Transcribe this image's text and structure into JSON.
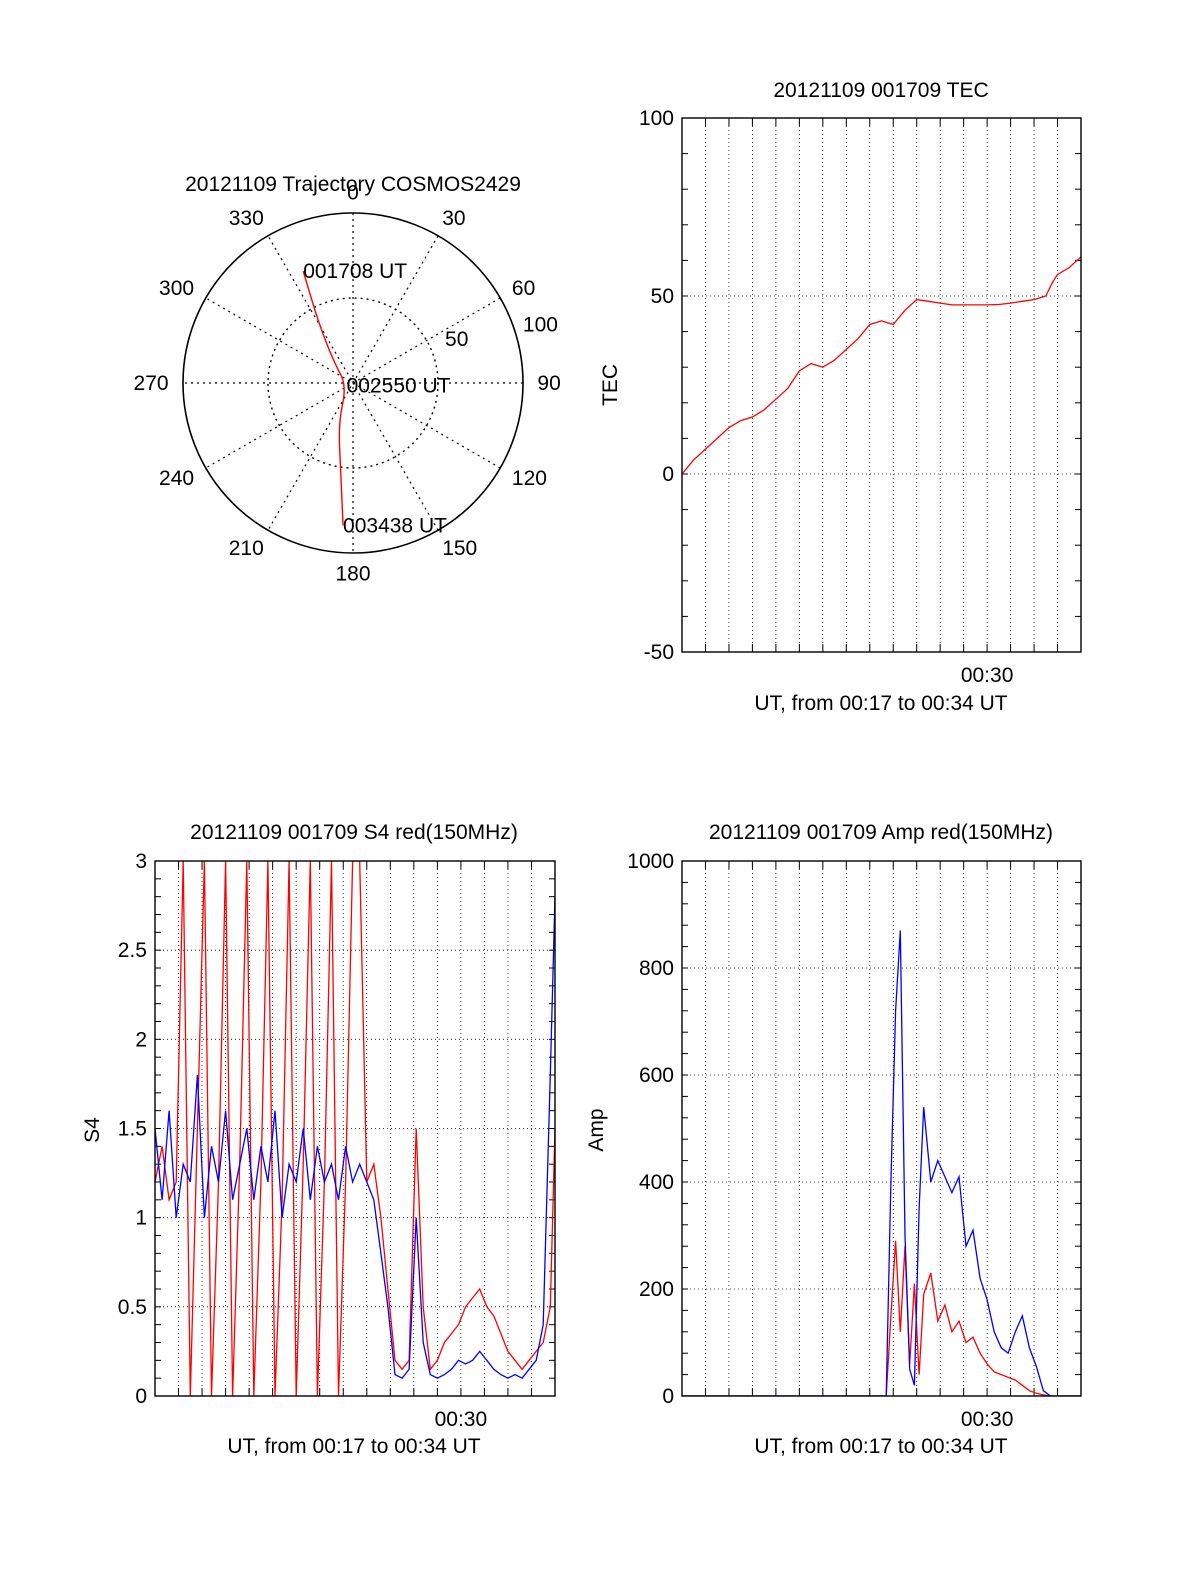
{
  "chart_data": [
    {
      "type": "polar",
      "title": "20121109 Trajectory COSMOS2429",
      "azimuth_labels": [
        "0",
        "30",
        "60",
        "90",
        "120",
        "150",
        "180",
        "210",
        "240",
        "270",
        "300",
        "330"
      ],
      "radial_labels": [
        "50",
        "100"
      ],
      "grid": true,
      "series": [
        {
          "color": "#ff0000",
          "points": [
            {
              "az": 336,
              "r": 72
            },
            {
              "az": 330,
              "r": 40
            },
            {
              "az": 317,
              "r": 16
            },
            {
              "az": 250,
              "r": 4
            },
            {
              "az": 200,
              "r": 25
            },
            {
              "az": 188,
              "r": 52
            },
            {
              "az": 184,
              "r": 84
            }
          ]
        }
      ],
      "annotations": [
        {
          "text": "001708 UT",
          "az": 336,
          "r": 72
        },
        {
          "text": "002550 UT",
          "az": 250,
          "r": 4
        },
        {
          "text": "003438 UT",
          "az": 184,
          "r": 84
        }
      ]
    },
    {
      "type": "line",
      "title": "20121109 001709 TEC",
      "xlabel": "UT, from 00:17 to 00:34 UT",
      "ylabel": "TEC",
      "xlim": [
        17.0,
        34.0
      ],
      "ylim": [
        -50,
        100
      ],
      "yticks": [
        -50,
        0,
        50,
        100
      ],
      "xticks": [
        {
          "value": 30,
          "label": "00:30"
        }
      ],
      "grid": true,
      "series": [
        {
          "color": "#ff0000",
          "x": [
            17.0,
            17.5,
            18.0,
            18.5,
            19.0,
            19.5,
            20.0,
            20.5,
            21.0,
            21.5,
            22.0,
            22.5,
            23.0,
            23.5,
            24.0,
            24.5,
            25.0,
            25.5,
            26.0,
            26.5,
            27.0,
            27.5,
            28.0,
            28.5,
            29.0,
            29.5,
            30.0,
            30.5,
            31.0,
            31.5,
            32.0,
            32.5,
            32.8,
            33.0,
            33.5,
            34.0
          ],
          "y": [
            0,
            4,
            7,
            10,
            13,
            15,
            16,
            18,
            21,
            24,
            29,
            31,
            30,
            32,
            35,
            38,
            42,
            43,
            42,
            46,
            49,
            48.5,
            48,
            47.5,
            47.5,
            47.5,
            47.5,
            47.6,
            48,
            48.5,
            49,
            50,
            54,
            56,
            58,
            61
          ]
        }
      ]
    },
    {
      "type": "line",
      "title": "20121109 001709 S4 red(150MHz)",
      "xlabel": "UT, from 00:17 to 00:34 UT",
      "ylabel": "S4",
      "xlim": [
        17.0,
        34.0
      ],
      "ylim": [
        0,
        3
      ],
      "yticks": [
        0,
        0.5,
        1,
        1.5,
        2,
        2.5,
        3
      ],
      "xticks": [
        {
          "value": 30,
          "label": "00:30"
        }
      ],
      "grid": true,
      "series": [
        {
          "color": "#ff0000",
          "x": [
            17.0,
            17.3,
            17.6,
            17.9,
            18.2,
            18.5,
            18.8,
            19.1,
            19.4,
            19.7,
            20.0,
            20.3,
            20.6,
            20.9,
            21.2,
            21.5,
            21.8,
            22.1,
            22.4,
            22.7,
            23.0,
            23.3,
            23.6,
            23.9,
            24.2,
            24.5,
            24.8,
            25.1,
            25.4,
            25.7,
            26.0,
            26.3,
            26.6,
            26.9,
            27.2,
            27.5,
            27.8,
            28.1,
            28.4,
            28.7,
            29.0,
            29.3,
            29.6,
            29.9,
            30.2,
            30.5,
            30.8,
            31.1,
            31.4,
            31.7,
            32.0,
            32.3,
            32.6,
            32.9,
            33.2,
            33.5,
            33.8,
            34.0
          ],
          "y": [
            1.2,
            1.4,
            1.1,
            1.2,
            3.0,
            0.0,
            1.5,
            3.0,
            0.0,
            1.2,
            3.0,
            0.0,
            1.3,
            3.0,
            0.0,
            1.2,
            3.0,
            0.0,
            1.1,
            3.0,
            0.0,
            1.3,
            3.0,
            0.0,
            1.2,
            3.0,
            0.0,
            1.2,
            3.0,
            3.0,
            1.2,
            1.3,
            1.0,
            0.6,
            0.2,
            0.15,
            0.2,
            1.5,
            0.5,
            0.15,
            0.2,
            0.3,
            0.35,
            0.4,
            0.5,
            0.55,
            0.6,
            0.5,
            0.45,
            0.35,
            0.25,
            0.2,
            0.15,
            0.2,
            0.25,
            0.3,
            0.5,
            1.5
          ]
        },
        {
          "color": "#0000ff",
          "x": [
            17.0,
            17.3,
            17.6,
            17.9,
            18.2,
            18.5,
            18.8,
            19.1,
            19.4,
            19.7,
            20.0,
            20.3,
            20.6,
            20.9,
            21.2,
            21.5,
            21.8,
            22.1,
            22.4,
            22.7,
            23.0,
            23.3,
            23.6,
            23.9,
            24.2,
            24.5,
            24.8,
            25.1,
            25.4,
            25.7,
            26.0,
            26.3,
            26.6,
            26.9,
            27.2,
            27.5,
            27.8,
            28.1,
            28.4,
            28.7,
            29.0,
            29.3,
            29.6,
            29.9,
            30.2,
            30.5,
            30.8,
            31.1,
            31.4,
            31.7,
            32.0,
            32.3,
            32.6,
            32.9,
            33.2,
            33.5,
            33.8,
            34.0
          ],
          "y": [
            1.5,
            1.1,
            1.6,
            1.0,
            1.3,
            1.2,
            1.8,
            1.0,
            1.4,
            1.2,
            1.6,
            1.1,
            1.3,
            1.5,
            1.1,
            1.4,
            1.2,
            1.6,
            1.0,
            1.3,
            1.2,
            1.5,
            1.1,
            1.4,
            1.2,
            1.3,
            1.1,
            1.4,
            1.2,
            1.3,
            1.2,
            1.1,
            0.8,
            0.5,
            0.12,
            0.1,
            0.15,
            1.0,
            0.3,
            0.12,
            0.1,
            0.12,
            0.15,
            0.2,
            0.18,
            0.2,
            0.25,
            0.2,
            0.15,
            0.12,
            0.1,
            0.12,
            0.1,
            0.15,
            0.2,
            0.4,
            1.8,
            2.8
          ]
        }
      ]
    },
    {
      "type": "line",
      "title": "20121109 001709 Amp red(150MHz)",
      "xlabel": "UT, from 00:17 to 00:34 UT",
      "ylabel": "Amp",
      "xlim": [
        17.0,
        34.0
      ],
      "ylim": [
        0,
        1000
      ],
      "yticks": [
        0,
        200,
        400,
        600,
        800,
        1000
      ],
      "xticks": [
        {
          "value": 30,
          "label": "00:30"
        }
      ],
      "grid": true,
      "series": [
        {
          "color": "#ff0000",
          "x": [
            17.0,
            20.0,
            23.0,
            25.0,
            25.7,
            25.9,
            26.1,
            26.3,
            26.5,
            26.7,
            26.9,
            27.1,
            27.3,
            27.6,
            27.9,
            28.2,
            28.5,
            28.8,
            29.1,
            29.4,
            29.7,
            30.0,
            30.3,
            30.6,
            30.9,
            31.2,
            31.5,
            31.8,
            32.1,
            32.4,
            32.7,
            33.0,
            34.0
          ],
          "y": [
            0,
            0,
            0,
            0,
            0,
            150,
            290,
            120,
            280,
            60,
            210,
            40,
            190,
            230,
            140,
            170,
            120,
            140,
            100,
            110,
            80,
            60,
            45,
            40,
            35,
            30,
            20,
            10,
            5,
            2,
            0,
            0,
            0
          ]
        },
        {
          "color": "#0000ff",
          "x": [
            17.0,
            20.0,
            23.0,
            25.0,
            25.7,
            25.9,
            26.1,
            26.3,
            26.5,
            26.7,
            26.9,
            27.1,
            27.3,
            27.6,
            27.9,
            28.2,
            28.5,
            28.8,
            29.1,
            29.4,
            29.7,
            30.0,
            30.3,
            30.6,
            30.9,
            31.2,
            31.5,
            31.8,
            32.1,
            32.4,
            32.7,
            33.0,
            34.0
          ],
          "y": [
            0,
            0,
            0,
            0,
            0,
            400,
            720,
            870,
            300,
            50,
            20,
            350,
            540,
            400,
            440,
            410,
            380,
            410,
            280,
            310,
            220,
            180,
            120,
            90,
            80,
            120,
            150,
            90,
            55,
            10,
            0,
            0,
            0
          ]
        }
      ]
    }
  ]
}
